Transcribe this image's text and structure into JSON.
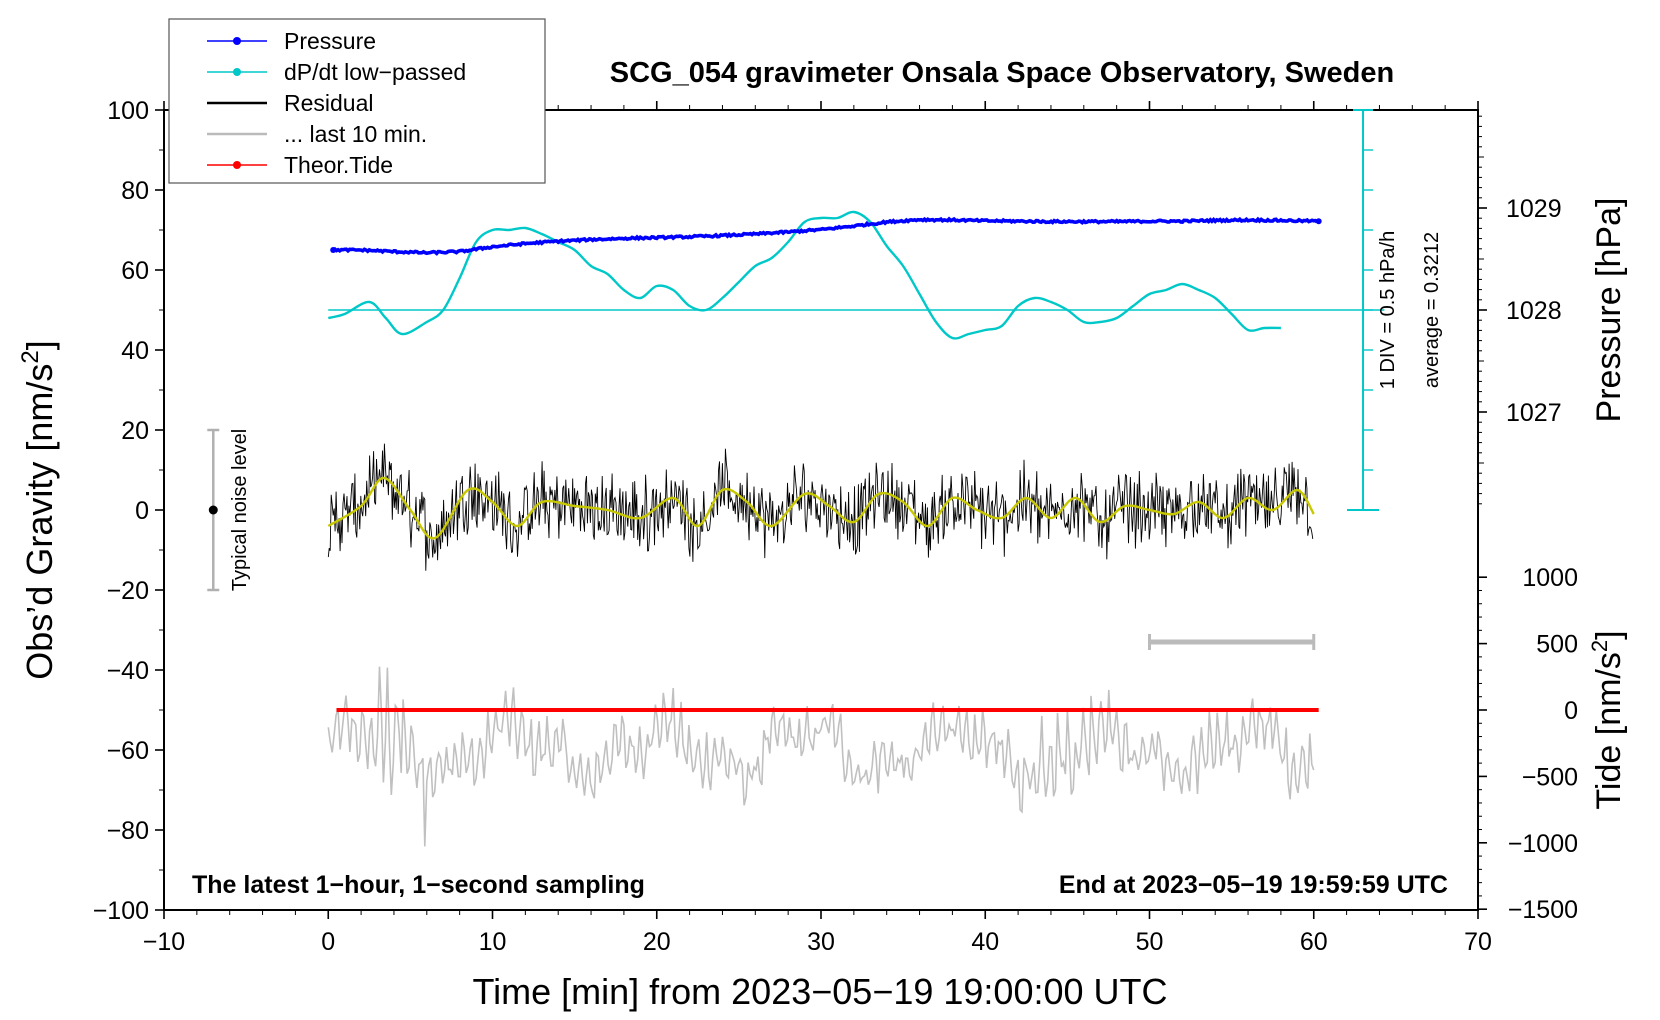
{
  "chart_data": {
    "type": "line",
    "title": "SCG_054 gravimeter Onsala Space Observatory, Sweden",
    "xlabel": "Time [min] from 2023−05−19 19:00:00 UTC",
    "ylabel_left": "Obs’d Gravity [nm/s",
    "ylabel_left_sup": "2",
    "ylabel_left_end": "]",
    "ylabel_pressure": "Pressure [hPa]",
    "ylabel_tide": "Tide [nm/s",
    "ylabel_tide_sup": "2",
    "ylabel_tide_end": "]",
    "xlim": [
      -10,
      70
    ],
    "ylim": [
      -100,
      100
    ],
    "x_ticks": [
      -10,
      0,
      10,
      20,
      30,
      40,
      50,
      60,
      70
    ],
    "x_tick_labels": [
      "−10",
      "0",
      "10",
      "20",
      "30",
      "40",
      "50",
      "60",
      "70"
    ],
    "y_ticks": [
      -100,
      -80,
      -60,
      -40,
      -20,
      0,
      20,
      40,
      60,
      80,
      100
    ],
    "y_tick_labels": [
      "−100",
      "−80",
      "−60",
      "−40",
      "−20",
      "0",
      "20",
      "40",
      "60",
      "80",
      "100"
    ],
    "pressure_axis": {
      "ticks": [
        1027,
        1028,
        1029
      ],
      "tick_labels": [
        "1027",
        "1028",
        "1029"
      ],
      "gravity_at_1028": 50,
      "gravity_per_hPa": 25.5
    },
    "tide_axis": {
      "ticks": [
        -1500,
        -1000,
        -500,
        0,
        500,
        1000
      ],
      "tick_labels": [
        "−1500",
        "−1000",
        "−500",
        "0",
        "500",
        "1000"
      ],
      "gravity_at_0": -50,
      "gravity_per_500": 16.6
    },
    "annotations": {
      "bottom_left": "The latest 1−hour, 1−second sampling",
      "bottom_right": "End at 2023−05−19 19:59:59 UTC",
      "noise_label": "Typical noise level",
      "div_label": "1 DIV = 0.5 hPa/h",
      "average_label": "average = 0.3212"
    },
    "noise_bar": {
      "x": -7,
      "center": 0,
      "half_range": 20
    },
    "last10_bar": {
      "x_start": 50,
      "x_end": 60,
      "y": -33
    },
    "ddt_scale": {
      "x": 63,
      "y_bottom": 0,
      "y_top": 100,
      "baseline": 50
    },
    "legend": [
      {
        "label": "Pressure",
        "color": "#0000ff",
        "marker": true
      },
      {
        "label": "dP/dt low−passed",
        "color": "#00c8c8",
        "marker": true
      },
      {
        "label": "Residual",
        "color": "#000000",
        "marker": false
      },
      {
        "label": "... last 10 min.",
        "color": "#bbbbbb",
        "marker": false
      },
      {
        "label": "Theor.Tide",
        "color": "#ff0000",
        "marker": true
      }
    ],
    "series": [
      {
        "name": "Pressure",
        "color": "#0000ff",
        "unit": "gravity-scale",
        "x": [
          0.3,
          2,
          4,
          6,
          8,
          10,
          12,
          14,
          16,
          18,
          20,
          22,
          24,
          26,
          28,
          30,
          32,
          34,
          36,
          38,
          40,
          42,
          44,
          46,
          48,
          50,
          52,
          54,
          56,
          58,
          60.3
        ],
        "y": [
          65,
          65,
          64.6,
          64.3,
          64.6,
          65.8,
          66.6,
          67.2,
          67.6,
          67.9,
          68.1,
          68.3,
          68.6,
          69,
          69.5,
          70.1,
          71,
          72,
          72.6,
          72.5,
          72.3,
          72.2,
          72.1,
          72.1,
          72.1,
          72.2,
          72.2,
          72.4,
          72.5,
          72.4,
          72.2
        ]
      },
      {
        "name": "dP/dt low-passed",
        "color": "#00c8c8",
        "unit": "gravity-scale",
        "x": [
          0,
          1,
          2.5,
          3.5,
          4.5,
          6,
          7,
          8,
          9,
          10,
          11,
          12,
          13,
          14,
          15,
          16,
          17,
          18,
          19,
          20,
          21,
          22,
          23,
          24,
          25,
          26,
          27,
          28,
          29,
          30,
          31,
          32,
          33,
          34,
          35,
          36,
          37,
          38,
          39,
          40,
          41,
          42,
          43,
          44,
          45,
          46,
          47,
          48,
          49,
          50,
          51,
          52,
          53,
          54,
          55,
          56,
          57,
          58
        ],
        "y": [
          48,
          49,
          52,
          48,
          44,
          47,
          50,
          58,
          67,
          70,
          70,
          70.5,
          69,
          67,
          65,
          61,
          59,
          55,
          53,
          56,
          55,
          51,
          50,
          53,
          57,
          61,
          63,
          67,
          72,
          73,
          73,
          74.5,
          72,
          66,
          61,
          54,
          47,
          43,
          44,
          45,
          46,
          51,
          53,
          52,
          50,
          47,
          47,
          48,
          51,
          54,
          55,
          56.5,
          55,
          53,
          49,
          45,
          45.5,
          45.5
        ]
      },
      {
        "name": "Residual",
        "color": "#000000",
        "unit": "nm/s2",
        "x": [
          0,
          2,
          3.4,
          5,
          6.5,
          8.5,
          10,
          11.5,
          13,
          15,
          17,
          19,
          21,
          22.5,
          24,
          25.5,
          27,
          29,
          30.5,
          32,
          33.5,
          35,
          36.5,
          38,
          39.5,
          41,
          42.5,
          44,
          45.5,
          47,
          48.5,
          50,
          51.5,
          53,
          54.5,
          56,
          57.5,
          59,
          60
        ],
        "y": [
          -4,
          1,
          8,
          0,
          -7,
          5,
          2,
          -4,
          2,
          1,
          0,
          -2,
          3,
          -4,
          5,
          2,
          -4,
          4,
          1,
          -3,
          4,
          2,
          -4,
          3,
          0,
          -2,
          3,
          -2,
          3,
          -3,
          1,
          0,
          -1,
          2,
          -2,
          3,
          0,
          5,
          -1
        ]
      },
      {
        "name": "Theor.Tide",
        "color": "#ff0000",
        "unit": "nm/s2",
        "x": [
          0.5,
          60.3
        ],
        "y": [
          -50,
          -50
        ]
      }
    ]
  }
}
